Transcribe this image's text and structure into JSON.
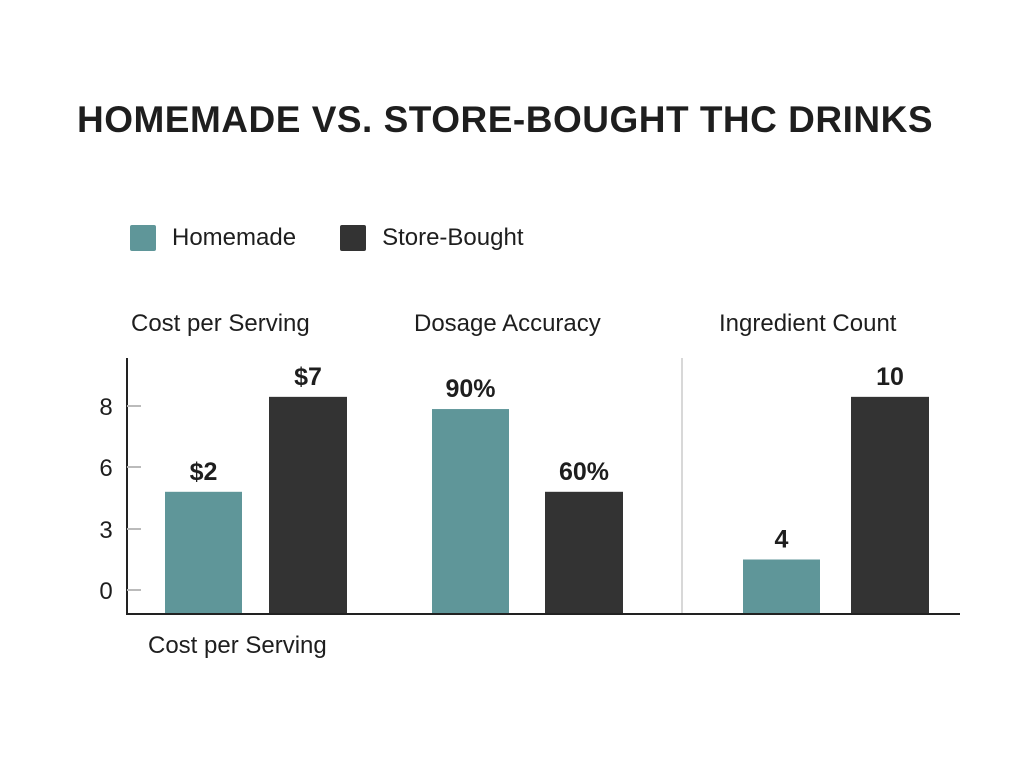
{
  "chart_data": {
    "type": "bar",
    "title": "HOMEMADE VS. STORE-BOUGHT THC DRINKS",
    "legend": {
      "position": "top-left",
      "entries": [
        "Homemade",
        "Store-Bought"
      ]
    },
    "colors": {
      "Homemade": "#5f9699",
      "Store-Bought": "#333333"
    },
    "categories": [
      "Cost per Serving",
      "Dosage Accuracy",
      "Ingredient Count"
    ],
    "series": [
      {
        "name": "Homemade",
        "labels": [
          "$2",
          "90%",
          "4"
        ],
        "values": [
          2,
          90,
          4
        ],
        "axis_level": [
          4.8,
          7.9,
          1.5
        ]
      },
      {
        "name": "Store-Bought",
        "labels": [
          "$7",
          "60%",
          "10"
        ],
        "values": [
          7,
          60,
          10
        ],
        "axis_level": [
          8.3,
          4.8,
          8.3
        ]
      }
    ],
    "yaxis": {
      "ticks": [
        0,
        3,
        6,
        8
      ],
      "tick_labels": [
        "0",
        "3",
        "6",
        "8"
      ]
    },
    "xlabel": "Cost per Serving",
    "grid": false
  }
}
